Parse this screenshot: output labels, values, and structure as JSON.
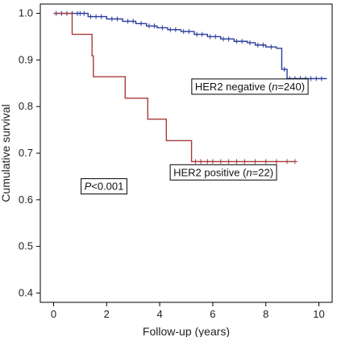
{
  "chart_data": {
    "type": "line",
    "subtype": "kaplan-meier",
    "xlabel": "Follow-up (years)",
    "ylabel": "Cumulative survival",
    "xlim": [
      -0.5,
      10.5
    ],
    "ylim": [
      0.38,
      1.02
    ],
    "xticks": [
      0,
      2,
      4,
      6,
      8,
      10
    ],
    "yticks": [
      0.4,
      0.5,
      0.6,
      0.7,
      0.8,
      0.9,
      1.0
    ],
    "ytick_labels": [
      "0.4",
      "0.5",
      "0.6",
      "0.7",
      "0.8",
      "0.9",
      "1.0"
    ],
    "grid": false,
    "series": [
      {
        "name": "HER2 negative",
        "n": 240,
        "color": "#2b3d9a",
        "steps": [
          [
            0,
            1.0
          ],
          [
            1.3,
            0.993
          ],
          [
            2.0,
            0.988
          ],
          [
            2.6,
            0.983
          ],
          [
            3.1,
            0.978
          ],
          [
            3.5,
            0.973
          ],
          [
            3.9,
            0.969
          ],
          [
            4.3,
            0.965
          ],
          [
            4.8,
            0.961
          ],
          [
            5.3,
            0.955
          ],
          [
            5.8,
            0.95
          ],
          [
            6.3,
            0.945
          ],
          [
            6.8,
            0.94
          ],
          [
            7.3,
            0.937
          ],
          [
            7.6,
            0.932
          ],
          [
            8.0,
            0.928
          ],
          [
            8.4,
            0.925
          ],
          [
            8.6,
            0.88
          ],
          [
            8.8,
            0.86
          ],
          [
            10.3,
            0.86
          ]
        ],
        "censor_x": [
          0.1,
          0.3,
          0.5,
          0.7,
          0.9,
          1.0,
          1.15,
          1.4,
          1.6,
          1.8,
          2.2,
          2.4,
          2.8,
          3.0,
          3.3,
          3.6,
          3.8,
          4.1,
          4.4,
          4.6,
          4.9,
          5.1,
          5.4,
          5.6,
          5.9,
          6.1,
          6.4,
          6.6,
          6.9,
          7.1,
          7.4,
          7.7,
          7.9,
          8.2,
          8.7,
          8.9,
          9.1,
          9.3,
          9.5,
          9.7,
          9.9,
          10.1
        ]
      },
      {
        "name": "HER2 positive",
        "n": 22,
        "color": "#a83a3a",
        "steps": [
          [
            0,
            1.0
          ],
          [
            0.7,
            0.955
          ],
          [
            1.45,
            0.909
          ],
          [
            1.5,
            0.864
          ],
          [
            2.7,
            0.818
          ],
          [
            3.55,
            0.773
          ],
          [
            4.25,
            0.727
          ],
          [
            5.2,
            0.682
          ],
          [
            9.1,
            0.682
          ]
        ],
        "censor_x": [
          5.35,
          5.55,
          5.8,
          6.0,
          6.3,
          6.6,
          6.9,
          7.2,
          7.6,
          8.0,
          8.4,
          8.8,
          9.1
        ]
      }
    ],
    "annotations": [
      {
        "series_index": 0,
        "label_prefix": "HER2 negative (",
        "label_n": "n",
        "label_suffix": "=240)",
        "x": 7.4,
        "y": 0.842
      },
      {
        "series_index": 1,
        "label_prefix": "HER2 positive (",
        "label_n": "n",
        "label_suffix": "=22)",
        "x": 6.4,
        "y": 0.658
      },
      {
        "label_p": "P",
        "label_rest": "<0.001",
        "x": 1.9,
        "y": 0.628
      }
    ]
  }
}
